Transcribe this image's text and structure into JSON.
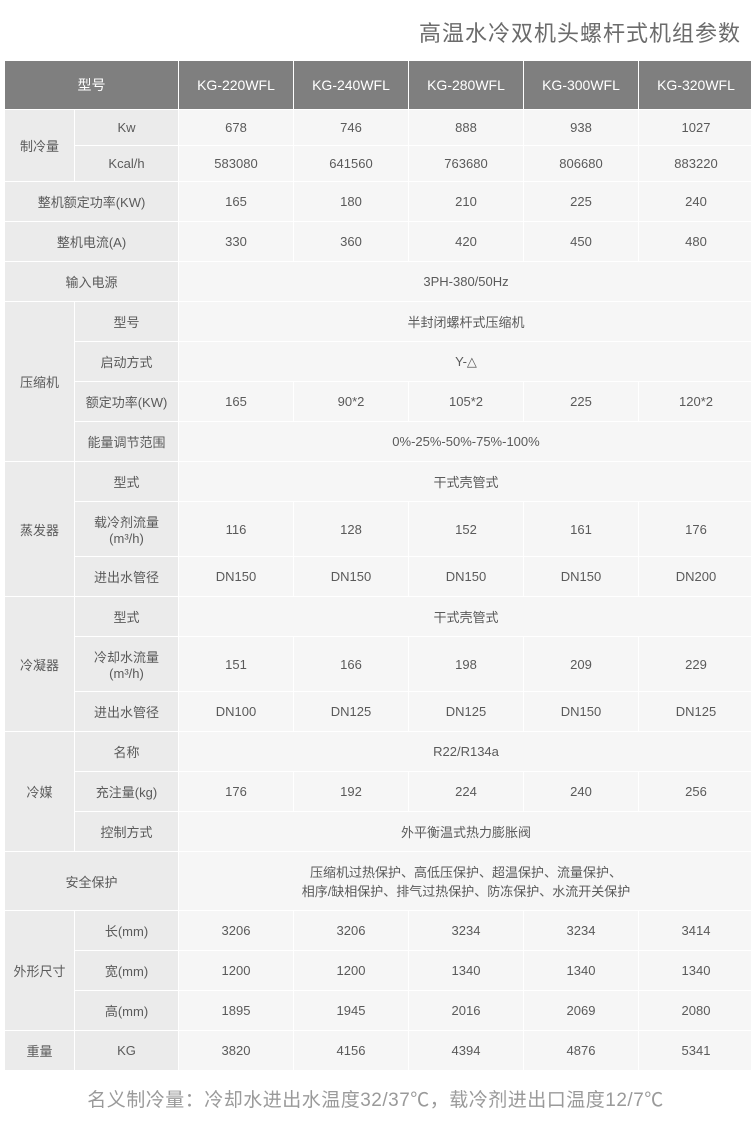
{
  "title": "高温水冷双机头螺杆式机组参数",
  "header": {
    "model_label": "型号",
    "models": [
      "KG-220WFL",
      "KG-240WFL",
      "KG-280WFL",
      "KG-300WFL",
      "KG-320WFL"
    ]
  },
  "cooling": {
    "label": "制冷量",
    "kw_label": "Kw",
    "kw": [
      "678",
      "746",
      "888",
      "938",
      "1027"
    ],
    "kcal_label": "Kcal/h",
    "kcal": [
      "583080",
      "641560",
      "763680",
      "806680",
      "883220"
    ]
  },
  "rated_power": {
    "label": "整机额定功率(KW)",
    "values": [
      "165",
      "180",
      "210",
      "225",
      "240"
    ]
  },
  "current": {
    "label": "整机电流(A)",
    "values": [
      "330",
      "360",
      "420",
      "450",
      "480"
    ]
  },
  "power_input": {
    "label": "输入电源",
    "value": "3PH-380/50Hz"
  },
  "compressor": {
    "label": "压缩机",
    "model_label": "型号",
    "model_value": "半封闭螺杆式压缩机",
    "start_label": "启动方式",
    "start_value": "Y-△",
    "power_label": "额定功率(KW)",
    "power": [
      "165",
      "90*2",
      "105*2",
      "225",
      "120*2"
    ],
    "range_label": "能量调节范围",
    "range_value": "0%-25%-50%-75%-100%"
  },
  "evaporator": {
    "label": "蒸发器",
    "type_label": "型式",
    "type_value": "干式壳管式",
    "flow_label": "载冷剂流量(m³/h)",
    "flow": [
      "116",
      "128",
      "152",
      "161",
      "176"
    ],
    "pipe_label": "进出水管径",
    "pipe": [
      "DN150",
      "DN150",
      "DN150",
      "DN150",
      "DN200"
    ]
  },
  "condenser": {
    "label": "冷凝器",
    "type_label": "型式",
    "type_value": "干式壳管式",
    "flow_label": "冷却水流量(m³/h)",
    "flow": [
      "151",
      "166",
      "198",
      "209",
      "229"
    ],
    "pipe_label": "进出水管径",
    "pipe": [
      "DN100",
      "DN125",
      "DN125",
      "DN150",
      "DN125"
    ]
  },
  "refrigerant": {
    "label": "冷媒",
    "name_label": "名称",
    "name_value": "R22/R134a",
    "charge_label": "充注量(kg)",
    "charge": [
      "176",
      "192",
      "224",
      "240",
      "256"
    ],
    "control_label": "控制方式",
    "control_value": "外平衡温式热力膨胀阀"
  },
  "safety": {
    "label": "安全保护",
    "line1": "压缩机过热保护、高低压保护、超温保护、流量保护、",
    "line2": "相序/缺相保护、排气过热保护、防冻保护、水流开关保护"
  },
  "dimensions": {
    "label": "外形尺寸",
    "length_label": "长(mm)",
    "length": [
      "3206",
      "3206",
      "3234",
      "3234",
      "3414"
    ],
    "width_label": "宽(mm)",
    "width": [
      "1200",
      "1200",
      "1340",
      "1340",
      "1340"
    ],
    "height_label": "高(mm)",
    "height": [
      "1895",
      "1945",
      "2016",
      "2069",
      "2080"
    ]
  },
  "weight": {
    "label": "重量",
    "unit_label": "KG",
    "values": [
      "3820",
      "4156",
      "4394",
      "4876",
      "5341"
    ]
  },
  "footnote": "名义制冷量：冷却水进出水温度32/37℃，载冷剂进出口温度12/7℃",
  "style": {
    "header_bg": "#7f7f7f",
    "header_fg": "#ffffff",
    "label_bg": "#ebebeb",
    "data_bg": "#f6f6f6",
    "border_color": "#ffffff",
    "text_color": "#5a5a5a",
    "title_color": "#6b6b6b",
    "title_fontsize": 22,
    "cell_fontsize": 13,
    "footnote_color": "#9a9a9a",
    "footnote_fontsize": 19
  }
}
